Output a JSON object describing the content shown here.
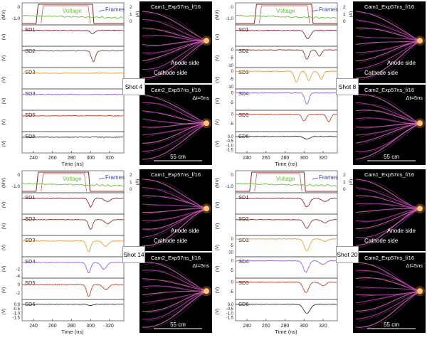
{
  "chart_data": {
    "type": "line",
    "x_label": "Time (ns)",
    "x_ticks": [
      240,
      260,
      280,
      300,
      320
    ],
    "xlim": [
      228,
      335
    ],
    "left_axis_unit": "(MV)",
    "right_axis_unit": "(A)",
    "voltage_label": "Voltage",
    "frames_label": "Frames",
    "cam1_label": "Cam1_Exp57ns_f/16",
    "cam2_label": "Cam2_Exp57ns_f/16",
    "dt_label": "Δt=5ns",
    "anode_label": "Anode side",
    "cathode_label": "Cathode side",
    "scale_label": "55 cm",
    "colors": {
      "voltage": "#6abf3a",
      "frames": "#8b1e1e",
      "SD1": "#8b2340",
      "SD2": "#8b3a2a",
      "SD3": "#e0a040",
      "SD4": "#9a60d0",
      "SD5": "#c8402a",
      "SD6": "#333333",
      "panel": "#000000"
    },
    "shots": [
      {
        "label": "Shot 4",
        "voltage_ticks": [
          "0",
          "-1.0"
        ],
        "current_ticks": [
          "2",
          "1",
          "0"
        ],
        "frames": [
          245,
          302
        ],
        "detectors": [
          {
            "name": "SD1",
            "unit": "(V)",
            "ticks": [],
            "ylim": [
              -2,
              0.5
            ],
            "peaks": [
              {
                "t": 302,
                "a": -0.5,
                "w": 3
              }
            ]
          },
          {
            "name": "SD2",
            "unit": "(V)",
            "ticks": [],
            "ylim": [
              -3,
              0.5
            ],
            "peaks": [
              {
                "t": 303,
                "a": -2.2,
                "w": 3
              }
            ]
          },
          {
            "name": "SD3",
            "unit": "(V)",
            "ticks": [],
            "ylim": [
              -2,
              0.5
            ],
            "peaks": []
          },
          {
            "name": "SD4",
            "unit": "(V)",
            "ticks": [],
            "ylim": [
              -2,
              0.5
            ],
            "peaks": []
          },
          {
            "name": "SD5",
            "unit": "(V)",
            "ticks": [],
            "ylim": [
              -2,
              0.5
            ],
            "peaks": []
          },
          {
            "name": "SD6",
            "unit": "(V)",
            "ticks": [],
            "ylim": [
              -2,
              0.5
            ],
            "peaks": []
          }
        ]
      },
      {
        "label": "Shot 8",
        "voltage_ticks": [
          "0",
          "-1.0"
        ],
        "current_ticks": [
          "2",
          "1",
          "0"
        ],
        "frames": [
          250,
          308
        ],
        "detectors": [
          {
            "name": "SD1",
            "unit": "(V)",
            "ticks": [],
            "ylim": [
              -2,
              0.5
            ],
            "peaks": [
              {
                "t": 304,
                "a": -1.2,
                "w": 4
              }
            ]
          },
          {
            "name": "SD2",
            "unit": "(V)",
            "ticks": [
              "0",
              "-5",
              "-10"
            ],
            "ylim": [
              -10,
              1
            ],
            "peaks": [
              {
                "t": 303,
                "a": -6,
                "w": 3
              },
              {
                "t": 316,
                "a": -4,
                "w": 3
              }
            ]
          },
          {
            "name": "SD3",
            "unit": "(V)",
            "ticks": [
              "0",
              "-5",
              "-10"
            ],
            "ylim": [
              -10,
              1
            ],
            "peaks": [
              {
                "t": 292,
                "a": -7,
                "w": 3
              },
              {
                "t": 305,
                "a": -6,
                "w": 3
              },
              {
                "t": 318,
                "a": -5,
                "w": 3
              }
            ]
          },
          {
            "name": "SD4",
            "unit": "(V)",
            "ticks": [
              "0",
              "-5"
            ],
            "ylim": [
              -8,
              1
            ],
            "peaks": [
              {
                "t": 303,
                "a": -6,
                "w": 3
              }
            ]
          },
          {
            "name": "SD5",
            "unit": "(V)",
            "ticks": [
              "0",
              "-5"
            ],
            "ylim": [
              -8,
              1
            ],
            "peaks": [
              {
                "t": 300,
                "a": -3.5,
                "w": 3
              },
              {
                "t": 326,
                "a": -4,
                "w": 3
              }
            ]
          },
          {
            "name": "SD6",
            "unit": "(V)",
            "ticks": [
              "0.0",
              "-0.5",
              "-1.0",
              "-1.5"
            ],
            "ylim": [
              -1.6,
              0.3
            ],
            "peaks": [
              {
                "t": 303,
                "a": -0.3,
                "w": 4
              }
            ]
          }
        ]
      },
      {
        "label": "Shot 14",
        "voltage_ticks": [
          "0",
          "-1.0"
        ],
        "current_ticks": [
          "2",
          "1",
          "0"
        ],
        "frames": [
          245,
          298
        ],
        "detectors": [
          {
            "name": "SD1",
            "unit": "(V)",
            "ticks": [],
            "ylim": [
              -4,
              1
            ],
            "peaks": [
              {
                "t": 300,
                "a": -2.5,
                "w": 3
              },
              {
                "t": 318,
                "a": -1,
                "w": 4
              }
            ]
          },
          {
            "name": "SD2",
            "unit": "(V)",
            "ticks": [],
            "ylim": [
              -4,
              1
            ],
            "peaks": [
              {
                "t": 300,
                "a": -2.8,
                "w": 3
              },
              {
                "t": 318,
                "a": -1.2,
                "w": 4
              }
            ]
          },
          {
            "name": "SD3",
            "unit": "(V)",
            "ticks": [],
            "ylim": [
              -4,
              1
            ],
            "peaks": [
              {
                "t": 298,
                "a": -3.2,
                "w": 3
              },
              {
                "t": 316,
                "a": -1.5,
                "w": 4
              }
            ]
          },
          {
            "name": "SD4",
            "unit": "(V)",
            "ticks": [
              "-2",
              "-4"
            ],
            "ylim": [
              -4,
              1
            ],
            "peaks": [
              {
                "t": 298,
                "a": -3.2,
                "w": 3
              },
              {
                "t": 314,
                "a": -2,
                "w": 4
              }
            ]
          },
          {
            "name": "SD5",
            "unit": "(V)",
            "ticks": [
              "0",
              "-2"
            ],
            "ylim": [
              -3,
              1
            ],
            "peaks": [
              {
                "t": 298,
                "a": -2.8,
                "w": 3
              },
              {
                "t": 316,
                "a": -1.2,
                "w": 4
              }
            ]
          },
          {
            "name": "SD6",
            "unit": "(V)",
            "ticks": [
              "0.0",
              "-0.5",
              "-1.0",
              "-1.5"
            ],
            "ylim": [
              -1.6,
              0.3
            ],
            "peaks": [
              {
                "t": 300,
                "a": -0.15,
                "w": 3
              }
            ]
          }
        ]
      },
      {
        "label": "Shot 20",
        "voltage_ticks": [
          "0",
          "-1.0"
        ],
        "current_ticks": [
          "2",
          "1",
          "0"
        ],
        "frames": [
          245,
          300
        ],
        "detectors": [
          {
            "name": "SD1",
            "unit": "(V)",
            "ticks": [],
            "ylim": [
              -4,
              1
            ],
            "peaks": [
              {
                "t": 303,
                "a": -2.5,
                "w": 4
              },
              {
                "t": 322,
                "a": -1,
                "w": 4
              }
            ]
          },
          {
            "name": "SD2",
            "unit": "(V)",
            "ticks": [],
            "ylim": [
              -4,
              1
            ],
            "peaks": [
              {
                "t": 303,
                "a": -2.5,
                "w": 4
              },
              {
                "t": 322,
                "a": -1,
                "w": 4
              }
            ]
          },
          {
            "name": "SD3",
            "unit": "(V)",
            "ticks": [
              "0",
              "-5",
              "-10"
            ],
            "ylim": [
              -12,
              1
            ],
            "peaks": [
              {
                "t": 303,
                "a": -9,
                "w": 4
              },
              {
                "t": 322,
                "a": -2,
                "w": 4
              }
            ]
          },
          {
            "name": "SD4",
            "unit": "(V)",
            "ticks": [
              "0",
              "-5"
            ],
            "ylim": [
              -8,
              1
            ],
            "peaks": [
              {
                "t": 302,
                "a": -6,
                "w": 4
              },
              {
                "t": 320,
                "a": -2,
                "w": 4
              }
            ]
          },
          {
            "name": "SD5",
            "unit": "(V)",
            "ticks": [
              "0",
              "-5"
            ],
            "ylim": [
              -8,
              1
            ],
            "peaks": [
              {
                "t": 302,
                "a": -5.5,
                "w": 4
              },
              {
                "t": 320,
                "a": -2,
                "w": 4
              }
            ]
          },
          {
            "name": "SD6",
            "unit": "(V)",
            "ticks": [
              "0.0",
              "-0.5",
              "-1.0",
              "-1.5"
            ],
            "ylim": [
              -1.6,
              0.3
            ],
            "peaks": [
              {
                "t": 303,
                "a": -1.0,
                "w": 5
              }
            ]
          }
        ]
      }
    ]
  }
}
